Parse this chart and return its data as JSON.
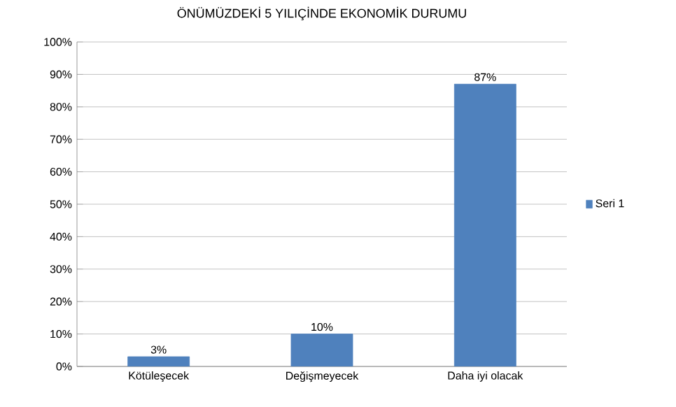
{
  "chart_data": {
    "type": "bar",
    "title": "ÖNÜMÜZDEKİ 5 YILIÇİNDE EKONOMİK DURUMU",
    "categories": [
      "Kötüleşecek",
      "Değişmeyecek",
      "Daha iyi olacak"
    ],
    "series": [
      {
        "name": "Seri 1",
        "color": "#4f81bd",
        "values": [
          3,
          10,
          87
        ],
        "value_labels": [
          "3%",
          "10%",
          "87%"
        ]
      }
    ],
    "ylim": [
      0,
      100
    ],
    "yticks": [
      {
        "value": 0,
        "label": "0%"
      },
      {
        "value": 10,
        "label": "10%"
      },
      {
        "value": 20,
        "label": "20%"
      },
      {
        "value": 30,
        "label": "30%"
      },
      {
        "value": 40,
        "label": "40%"
      },
      {
        "value": 50,
        "label": "50%"
      },
      {
        "value": 60,
        "label": "60%"
      },
      {
        "value": 70,
        "label": "70%"
      },
      {
        "value": 80,
        "label": "80%"
      },
      {
        "value": 90,
        "label": "90%"
      },
      {
        "value": 100,
        "label": "100%"
      }
    ],
    "grid": "y",
    "legend": "right"
  }
}
